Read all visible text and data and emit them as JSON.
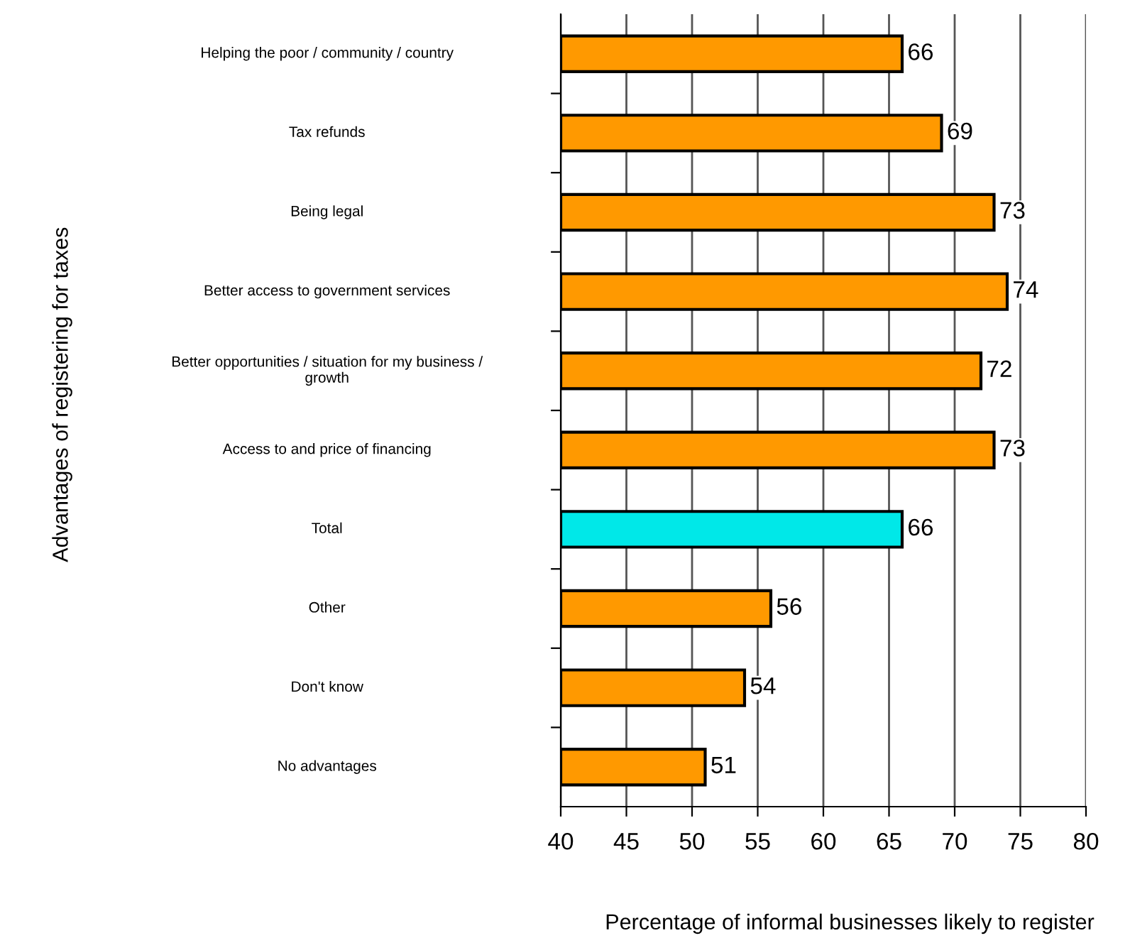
{
  "chart_data": {
    "type": "bar",
    "orientation": "horizontal",
    "xlabel": "Percentage of informal businesses likely to register",
    "ylabel": "Advantages of registering for taxes",
    "categories": [
      "Helping the poor / community / country",
      "Tax refunds",
      "Being legal",
      "Better access to government services",
      "Better opportunities / situation for my business /\ngrowth",
      "Access to and price of financing",
      "Total",
      "Other",
      "Don't know",
      "No advantages"
    ],
    "values": [
      66,
      69,
      73,
      74,
      72,
      73,
      66,
      56,
      54,
      51
    ],
    "colors": [
      "#ff9900",
      "#ff9900",
      "#ff9900",
      "#ff9900",
      "#ff9900",
      "#ff9900",
      "#00e8e8",
      "#ff9900",
      "#ff9900",
      "#ff9900"
    ],
    "xlim": [
      40,
      80
    ],
    "xticks": [
      40,
      45,
      50,
      55,
      60,
      65,
      70,
      75,
      80
    ],
    "grid": "x",
    "data_labels": true,
    "legend": false
  }
}
